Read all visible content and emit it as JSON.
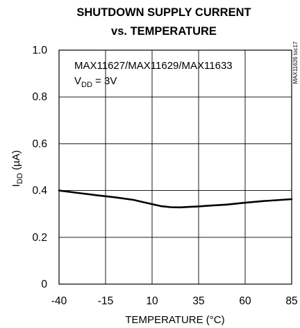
{
  "chart_data": {
    "type": "line",
    "title_line1": "SHUTDOWN SUPPLY CURRENT",
    "title_line2": "vs. TEMPERATURE",
    "xlabel": "TEMPERATURE (°C)",
    "ylabel_main": "I",
    "ylabel_sub": "DD",
    "ylabel_unit": " (µA)",
    "xlim": [
      -40,
      85
    ],
    "ylim": [
      0,
      1.0
    ],
    "x_ticks": [
      "-40",
      "-15",
      "10",
      "35",
      "60",
      "85"
    ],
    "y_ticks": [
      "0",
      "0.2",
      "0.4",
      "0.6",
      "0.8",
      "1.0"
    ],
    "annotation_line1": "MAX11627/MAX11629/MAX11633",
    "annotation_line2_main": "V",
    "annotation_line2_sub": "DD",
    "annotation_line2_rest": " = 3V",
    "figure_code": "MAX11626 toc17",
    "grid": true,
    "series": [
      {
        "x": [
          -40,
          -30,
          -20,
          -10,
          0,
          5,
          10,
          15,
          20,
          25,
          30,
          35,
          40,
          50,
          60,
          70,
          85
        ],
        "y": [
          0.4,
          0.39,
          0.38,
          0.371,
          0.36,
          0.351,
          0.342,
          0.333,
          0.329,
          0.328,
          0.33,
          0.332,
          0.335,
          0.34,
          0.348,
          0.355,
          0.363
        ]
      }
    ]
  }
}
